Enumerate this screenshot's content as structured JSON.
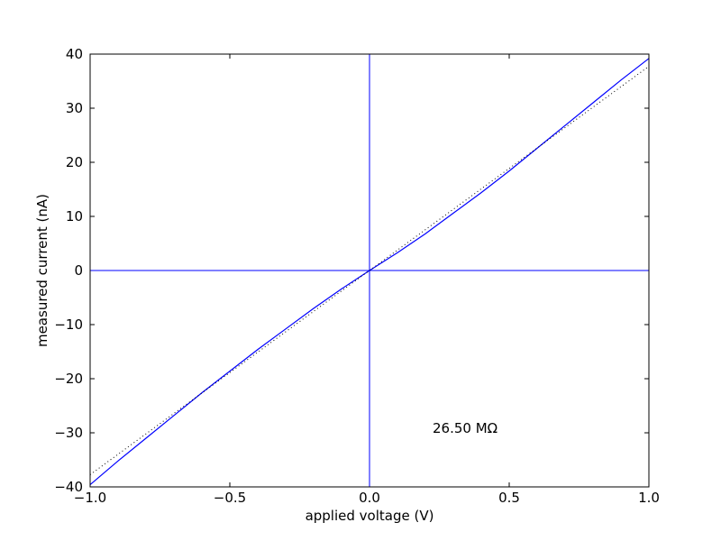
{
  "chart_data": {
    "type": "line",
    "xlabel": "applied voltage (V)",
    "ylabel": "measured current (nA)",
    "annotation": "26.50 MΩ",
    "xlim": [
      -1,
      1
    ],
    "ylim": [
      -40,
      40
    ],
    "xticks": [
      {
        "value": -1,
        "label": "−1.0"
      },
      {
        "value": -0.5,
        "label": "−0.5"
      },
      {
        "value": 0,
        "label": "0.0"
      },
      0.5,
      {
        "value": 1,
        "label": "1.0"
      }
    ],
    "yticks": [
      {
        "value": -40,
        "label": "−40"
      },
      {
        "value": -30,
        "label": "−30"
      },
      {
        "value": -20,
        "label": "−20"
      },
      {
        "value": -10,
        "label": "−10"
      },
      0,
      10,
      20,
      30,
      40
    ],
    "hlines": [
      0
    ],
    "vlines": [
      0
    ],
    "refline_color": "#0000ff",
    "series": [
      {
        "color": "#0000ff",
        "style": "solid",
        "x": [
          -1,
          -0.9,
          -0.8,
          -0.7,
          -0.6,
          -0.5,
          -0.4,
          -0.3,
          -0.2,
          -0.1,
          0,
          0.1,
          0.2,
          0.3,
          0.4,
          0.5,
          0.6,
          0.7,
          0.8,
          0.9,
          1
        ],
        "values": [
          -39.6,
          -35.2,
          -31.0,
          -26.8,
          -22.6,
          -18.6,
          -14.6,
          -10.8,
          -7.0,
          -3.4,
          0,
          3.3,
          6.8,
          10.6,
          14.4,
          18.4,
          22.6,
          26.8,
          31.0,
          35.2,
          39.2
        ]
      },
      {
        "color": "#000000",
        "style": "dotted",
        "x": [
          -1,
          1
        ],
        "values": [
          -37.74,
          37.74
        ]
      }
    ]
  }
}
